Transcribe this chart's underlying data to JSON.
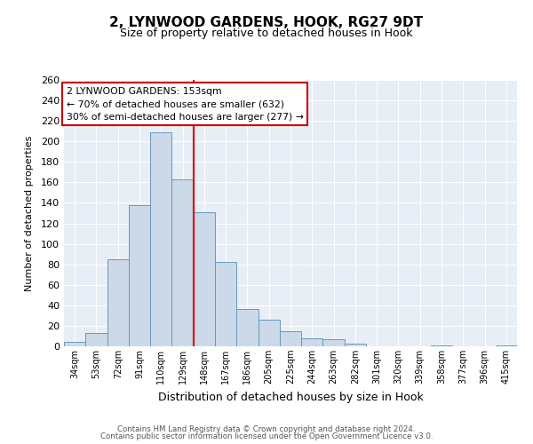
{
  "title": "2, LYNWOOD GARDENS, HOOK, RG27 9DT",
  "subtitle": "Size of property relative to detached houses in Hook",
  "xlabel": "Distribution of detached houses by size in Hook",
  "ylabel": "Number of detached properties",
  "bar_color": "#ccd9e8",
  "bar_edge_color": "#6699bb",
  "background_color": "#e8eef5",
  "bin_labels": [
    "34sqm",
    "53sqm",
    "72sqm",
    "91sqm",
    "110sqm",
    "129sqm",
    "148sqm",
    "167sqm",
    "186sqm",
    "205sqm",
    "225sqm",
    "244sqm",
    "263sqm",
    "282sqm",
    "301sqm",
    "320sqm",
    "339sqm",
    "358sqm",
    "377sqm",
    "396sqm",
    "415sqm"
  ],
  "bar_values": [
    4,
    13,
    85,
    138,
    209,
    163,
    131,
    82,
    36,
    26,
    15,
    8,
    7,
    3,
    0,
    0,
    0,
    1,
    0,
    0,
    1
  ],
  "ylim": [
    0,
    260
  ],
  "yticks": [
    0,
    20,
    40,
    60,
    80,
    100,
    120,
    140,
    160,
    180,
    200,
    220,
    240,
    260
  ],
  "vline_index": 6,
  "vline_color": "#dd0000",
  "annotation_line1": "2 LYNWOOD GARDENS: 153sqm",
  "annotation_line2": "← 70% of detached houses are smaller (632)",
  "annotation_line3": "30% of semi-detached houses are larger (277) →",
  "footer_line1": "Contains HM Land Registry data © Crown copyright and database right 2024.",
  "footer_line2": "Contains public sector information licensed under the Open Government Licence v3.0."
}
